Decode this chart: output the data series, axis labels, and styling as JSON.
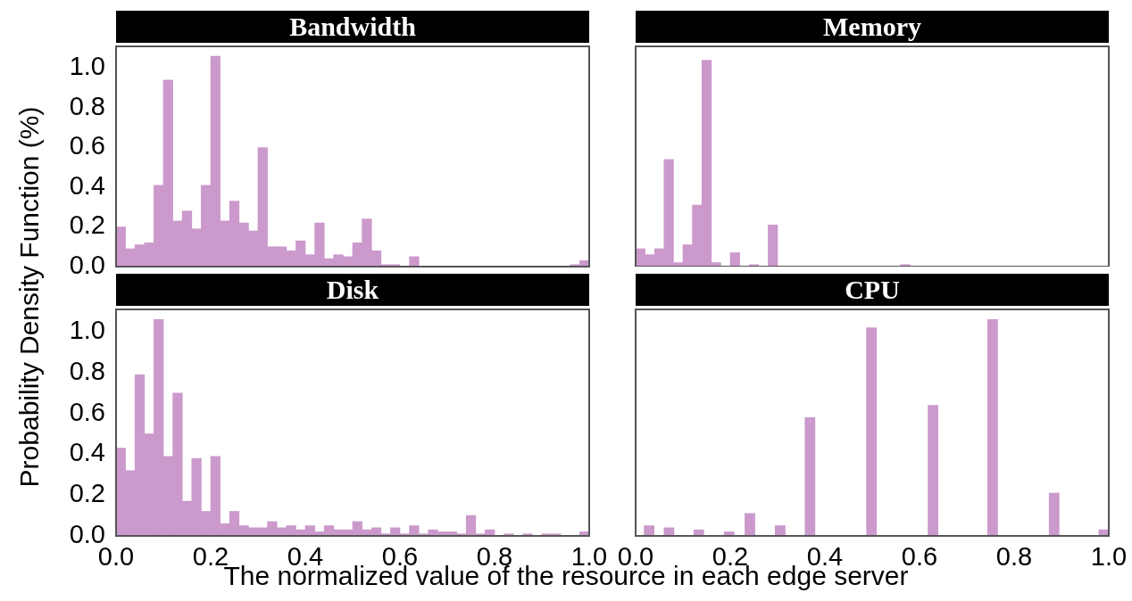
{
  "chart_data": [
    {
      "type": "histogram",
      "title": "Bandwidth",
      "ylabel": "Probability Density Function (%)",
      "color": "#cc99cc",
      "bins": [
        0,
        0.02,
        0.04,
        0.06,
        0.08,
        0.1,
        0.12,
        0.14,
        0.16,
        0.18,
        0.2,
        0.22,
        0.24,
        0.26,
        0.28,
        0.3,
        0.32,
        0.34,
        0.36,
        0.38,
        0.4,
        0.42,
        0.44,
        0.46,
        0.48,
        0.5,
        0.52,
        0.54,
        0.56,
        0.58,
        0.6,
        0.62,
        0.64,
        0.66,
        0.68,
        0.7,
        0.72,
        0.74,
        0.76,
        0.78,
        0.8,
        0.82,
        0.84,
        0.86,
        0.88,
        0.9,
        0.92,
        0.94,
        0.96,
        0.98,
        1
      ],
      "values": [
        0.2,
        0.09,
        0.11,
        0.12,
        0.41,
        0.94,
        0.23,
        0.28,
        0.19,
        0.41,
        1.06,
        0.23,
        0.33,
        0.22,
        0.18,
        0.6,
        0.1,
        0.1,
        0.08,
        0.13,
        0.06,
        0.22,
        0.04,
        0.06,
        0.05,
        0.12,
        0.24,
        0.08,
        0.01,
        0.01,
        0,
        0.05,
        0,
        0,
        0,
        0,
        0,
        0,
        0,
        0,
        0,
        0,
        0,
        0,
        0,
        0,
        0,
        0,
        0.01,
        0.03
      ],
      "xlim": [
        0,
        1
      ],
      "ylim": [
        0,
        1.11
      ],
      "yticks": [
        {
          "value": 0,
          "label": "0.0"
        },
        {
          "value": 0.2,
          "label": "0.2"
        },
        {
          "value": 0.4,
          "label": "0.4"
        },
        {
          "value": 0.6,
          "label": "0.6"
        },
        {
          "value": 0.8,
          "label": "0.8"
        },
        {
          "value": 1,
          "label": "1.0"
        }
      ],
      "tick_labels": "y"
    },
    {
      "type": "histogram",
      "title": "Memory",
      "color": "#cc99cc",
      "bins": [
        0,
        0.02,
        0.04,
        0.06,
        0.08,
        0.1,
        0.12,
        0.14,
        0.16,
        0.18,
        0.2,
        0.22,
        0.24,
        0.26,
        0.28,
        0.3,
        0.32,
        0.34,
        0.36,
        0.38,
        0.4,
        0.42,
        0.44,
        0.46,
        0.48,
        0.5,
        0.52,
        0.54,
        0.56,
        0.58,
        0.6,
        0.62,
        0.64,
        0.66,
        0.68,
        0.7,
        0.72,
        0.74,
        0.76,
        0.78,
        0.8,
        0.82,
        0.84,
        0.86,
        0.88,
        0.9,
        0.92,
        0.94,
        0.96,
        0.98,
        1
      ],
      "values": [
        0.09,
        0.06,
        0.09,
        0.54,
        0.02,
        0.11,
        0.31,
        1.04,
        0.02,
        0,
        0.07,
        0,
        0.01,
        0,
        0.21,
        0,
        0,
        0,
        0,
        0,
        0,
        0,
        0,
        0,
        0,
        0,
        0,
        0,
        0.01,
        0,
        0,
        0,
        0,
        0,
        0,
        0,
        0,
        0,
        0,
        0,
        0,
        0,
        0,
        0,
        0,
        0,
        0,
        0,
        0,
        0
      ],
      "xlim": [
        0,
        1
      ],
      "ylim": [
        0,
        1.11
      ],
      "tick_labels": false
    },
    {
      "type": "histogram",
      "title": "Disk",
      "xlabel": "The normalized value of the resource in each edge server",
      "color": "#cc99cc",
      "bins": [
        0,
        0.02,
        0.04,
        0.06,
        0.08,
        0.1,
        0.12,
        0.14,
        0.16,
        0.18,
        0.2,
        0.22,
        0.24,
        0.26,
        0.28,
        0.3,
        0.32,
        0.34,
        0.36,
        0.38,
        0.4,
        0.42,
        0.44,
        0.46,
        0.48,
        0.5,
        0.52,
        0.54,
        0.56,
        0.58,
        0.6,
        0.62,
        0.64,
        0.66,
        0.68,
        0.7,
        0.72,
        0.74,
        0.76,
        0.78,
        0.8,
        0.82,
        0.84,
        0.86,
        0.88,
        0.9,
        0.92,
        0.94,
        0.96,
        0.98,
        1
      ],
      "values": [
        0.43,
        0.32,
        0.79,
        0.5,
        1.06,
        0.39,
        0.7,
        0.17,
        0.38,
        0.12,
        0.39,
        0.06,
        0.12,
        0.05,
        0.04,
        0.04,
        0.07,
        0.04,
        0.05,
        0.03,
        0.05,
        0.02,
        0.05,
        0.03,
        0.03,
        0.07,
        0.03,
        0.04,
        0.01,
        0.04,
        0.01,
        0.05,
        0.01,
        0.03,
        0.02,
        0.02,
        0.01,
        0.1,
        0.01,
        0.03,
        0,
        0.01,
        0,
        0.01,
        0,
        0.01,
        0.01,
        0,
        0,
        0.02
      ],
      "xlim": [
        0,
        1
      ],
      "ylim": [
        0,
        1.11
      ],
      "xticks": [
        {
          "value": 0,
          "label": "0.0"
        },
        {
          "value": 0.2,
          "label": "0.2"
        },
        {
          "value": 0.4,
          "label": "0.4"
        },
        {
          "value": 0.6,
          "label": "0.6"
        },
        {
          "value": 0.8,
          "label": "0.8"
        },
        {
          "value": 1,
          "label": "1.0"
        }
      ],
      "yticks": [
        {
          "value": 0,
          "label": "0.0"
        },
        {
          "value": 0.2,
          "label": "0.2"
        },
        {
          "value": 0.4,
          "label": "0.4"
        },
        {
          "value": 0.6,
          "label": "0.6"
        },
        {
          "value": 0.8,
          "label": "0.8"
        },
        {
          "value": 1,
          "label": "1.0"
        }
      ]
    },
    {
      "type": "histogram",
      "title": "CPU",
      "color": "#cc99cc",
      "bins": [
        0,
        0.018,
        0.039,
        0.06,
        0.081,
        0.123,
        0.144,
        0.187,
        0.208,
        0.231,
        0.252,
        0.295,
        0.316,
        0.358,
        0.379,
        0.488,
        0.509,
        0.618,
        0.639,
        0.744,
        0.765,
        0.874,
        0.895,
        0.979,
        1
      ],
      "values": [
        0,
        0.05,
        0,
        0.04,
        0,
        0.03,
        0,
        0.02,
        0,
        0.11,
        0,
        0.05,
        0,
        0.58,
        0,
        1.02,
        0,
        0.64,
        0,
        1.06,
        0,
        0.21,
        0,
        0.03
      ],
      "xlim": [
        0,
        1
      ],
      "ylim": [
        0,
        1.11
      ],
      "xticks": [
        {
          "value": 0,
          "label": "0.0"
        },
        {
          "value": 0.2,
          "label": "0.2"
        },
        {
          "value": 0.4,
          "label": "0.4"
        },
        {
          "value": 0.6,
          "label": "0.6"
        },
        {
          "value": 0.8,
          "label": "0.8"
        },
        {
          "value": 1,
          "label": "1.0"
        }
      ],
      "tick_labels": "x"
    }
  ]
}
